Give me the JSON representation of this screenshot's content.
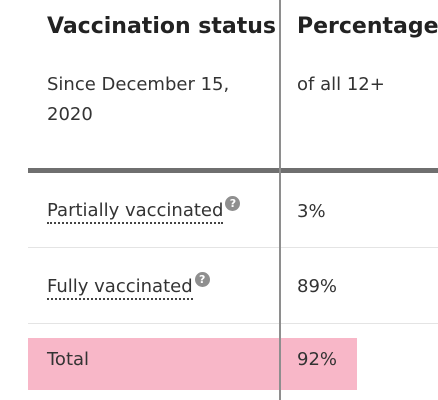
{
  "table": {
    "headers": [
      {
        "title": "Vaccination status",
        "subtitle_line1": "Since December 15,",
        "subtitle_line2": "2020"
      },
      {
        "title": "Percentage",
        "subtitle_line1": "of all 12+"
      }
    ],
    "rows": [
      {
        "label": "Partially vaccinated",
        "value": "3%",
        "help_icon": "question-circle-icon"
      },
      {
        "label": "Fully vaccinated",
        "value": "89%",
        "help_icon": "question-circle-icon"
      }
    ],
    "total": {
      "label": "Total",
      "value": "92%"
    }
  },
  "colors": {
    "total_highlight": "#f8b7c8",
    "header_rule": "#6f6f6f",
    "column_divider": "#8e8e8e"
  },
  "icons": {
    "help_glyph": "?"
  }
}
